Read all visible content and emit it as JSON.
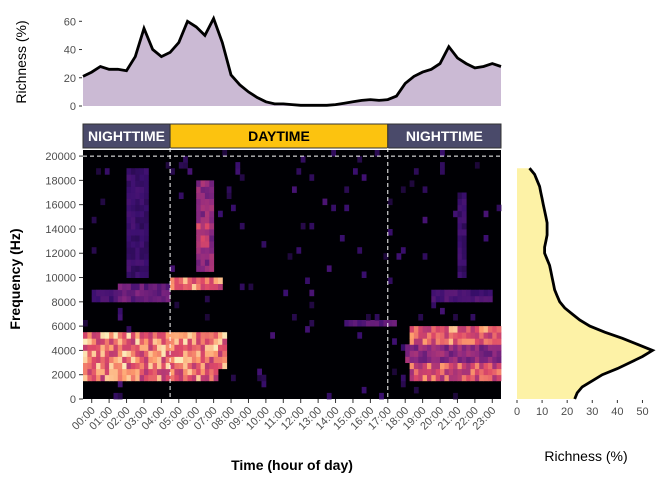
{
  "colors": {
    "top_fill": "#cbbad4",
    "right_fill": "#fdf2a6",
    "curve_stroke": "#000000",
    "night_band": "#4a4a6a",
    "day_band": "#fcc30f",
    "spectro_bg": "#000004"
  },
  "chart_data": [
    {
      "type": "area",
      "panel": "top",
      "ylabel": "Richness (%)",
      "xlim": [
        0,
        24
      ],
      "ylim": [
        0,
        68
      ],
      "yticks": [
        0,
        20,
        40,
        60
      ],
      "x": [
        0,
        0.5,
        1,
        1.5,
        2,
        2.5,
        3,
        3.5,
        4,
        4.5,
        5,
        5.5,
        6,
        6.5,
        7,
        7.5,
        8,
        8.5,
        9,
        9.5,
        10,
        10.5,
        11,
        11.5,
        12,
        12.5,
        13,
        13.5,
        14,
        14.5,
        15,
        15.5,
        16,
        16.5,
        17,
        17.5,
        18,
        18.5,
        19,
        19.5,
        20,
        20.5,
        21,
        21.5,
        22,
        22.5,
        23,
        23.5,
        24
      ],
      "values": [
        21,
        24,
        28,
        26,
        26,
        25,
        35,
        55,
        40,
        35,
        38,
        45,
        60,
        56,
        50,
        62,
        45,
        22,
        15,
        10,
        6,
        3,
        1.5,
        1.5,
        1,
        0.5,
        0.5,
        0.5,
        0.5,
        1,
        2,
        3,
        4,
        4.5,
        4,
        4.5,
        7,
        16,
        21,
        24,
        26,
        30,
        42,
        34,
        30,
        27,
        28,
        30,
        28
      ]
    },
    {
      "type": "heatmap",
      "panel": "main",
      "xlabel": "Time (hour of day)",
      "ylabel": "Frequency (Hz)",
      "xlim": [
        0,
        24
      ],
      "ylim": [
        0,
        20500
      ],
      "x_ticks": [
        "00:00",
        "01:00",
        "02:00",
        "03:00",
        "04:00",
        "05:00",
        "06:00",
        "07:00",
        "08:00",
        "09:00",
        "10:00",
        "11:00",
        "12:00",
        "13:00",
        "14:00",
        "15:00",
        "16:00",
        "17:00",
        "18:00",
        "19:00",
        "20:00",
        "21:00",
        "22:00",
        "23:00"
      ],
      "y_ticks": [
        0,
        2000,
        4000,
        6000,
        8000,
        10000,
        12000,
        14000,
        16000,
        18000,
        20000
      ],
      "vlines": [
        5,
        17.5
      ],
      "hline": 20000,
      "periods": [
        {
          "label": "NIGHTTIME",
          "start": 0,
          "end": 5,
          "kind": "night"
        },
        {
          "label": "DAYTIME",
          "start": 5,
          "end": 17.5,
          "kind": "day"
        },
        {
          "label": "NIGHTTIME",
          "start": 17.5,
          "end": 24,
          "kind": "night"
        }
      ],
      "intensity_blobs": [
        {
          "t0": 0,
          "t1": 8.2,
          "f0": 2500,
          "f1": 5500,
          "level": 0.85
        },
        {
          "t0": 0,
          "t1": 7.8,
          "f0": 1500,
          "f1": 2800,
          "level": 0.8
        },
        {
          "t0": 0,
          "t1": 5,
          "f0": 3000,
          "f1": 4500,
          "level": 0.55
        },
        {
          "t0": 5,
          "t1": 7.8,
          "f0": 3300,
          "f1": 4300,
          "level": 0.5
        },
        {
          "t0": 5,
          "t1": 8,
          "f0": 9200,
          "f1": 10200,
          "level": 0.8
        },
        {
          "t0": 6.5,
          "t1": 7.5,
          "f0": 10500,
          "f1": 18000,
          "level": 0.5
        },
        {
          "t0": 6.5,
          "t1": 7.2,
          "f0": 12000,
          "f1": 14500,
          "level": 0.65
        },
        {
          "t0": 2,
          "t1": 5,
          "f0": 8200,
          "f1": 9500,
          "level": 0.4
        },
        {
          "t0": 0.5,
          "t1": 2,
          "f0": 7800,
          "f1": 9000,
          "level": 0.3
        },
        {
          "t0": 18.7,
          "t1": 24,
          "f0": 4300,
          "f1": 5800,
          "level": 0.8
        },
        {
          "t0": 18.7,
          "t1": 24,
          "f0": 1600,
          "f1": 3100,
          "level": 0.75
        },
        {
          "t0": 18.5,
          "t1": 24,
          "f0": 3000,
          "f1": 4300,
          "level": 0.5
        },
        {
          "t0": 20,
          "t1": 23.5,
          "f0": 8200,
          "f1": 9200,
          "level": 0.3
        },
        {
          "t0": 15,
          "t1": 18,
          "f0": 6000,
          "f1": 6500,
          "level": 0.35
        },
        {
          "t0": 8,
          "t1": 17,
          "f0": 6300,
          "f1": 6700,
          "level": 0.2
        },
        {
          "t0": 2.5,
          "t1": 3.8,
          "f0": 10000,
          "f1": 19000,
          "level": 0.25
        },
        {
          "t0": 21.5,
          "t1": 22,
          "f0": 10000,
          "f1": 17000,
          "level": 0.25
        }
      ]
    },
    {
      "type": "area",
      "panel": "right",
      "xlabel": "Richness (%)",
      "xlim": [
        0,
        55
      ],
      "xticks": [
        0,
        10,
        20,
        30,
        40,
        50
      ],
      "freq": [
        0,
        500,
        1000,
        1500,
        2000,
        2500,
        3000,
        3500,
        4000,
        4500,
        5000,
        5500,
        6000,
        6500,
        7000,
        7500,
        8000,
        8500,
        9000,
        9500,
        10000,
        10500,
        11000,
        11500,
        12000,
        12500,
        13000,
        13500,
        14000,
        14500,
        15000,
        15500,
        16000,
        16500,
        17000,
        17500,
        18000,
        18500,
        19000
      ],
      "values": [
        23,
        24,
        26,
        30,
        34,
        40,
        45,
        50,
        54,
        48,
        42,
        35,
        29,
        25,
        22,
        19,
        17,
        16,
        15,
        14.5,
        14,
        13.5,
        13,
        12,
        11,
        11,
        11.5,
        12,
        12,
        12,
        11.5,
        11,
        10.5,
        10,
        9.5,
        9,
        8,
        7,
        5
      ]
    }
  ]
}
